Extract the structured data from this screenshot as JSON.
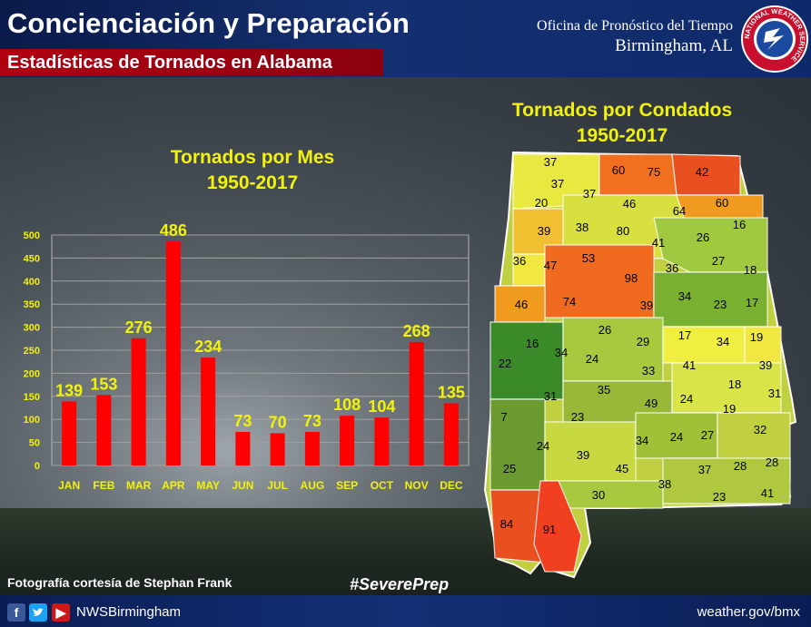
{
  "header": {
    "title": "Concienciación y Preparación",
    "subtitle": "Estadísticas de Tornados en Alabama",
    "office": "Oficina de Pronóstico del Tiempo",
    "city": "Birmingham, AL",
    "logo_text": "NATIONAL WEATHER SERVICE"
  },
  "footer": {
    "credit": "Fotografía cortesía de Stephan Frank",
    "hashtag": "#SeverePrep",
    "handle": "NWSBirmingham",
    "website": "weather.gov/bmx",
    "social_icons": [
      "facebook-icon",
      "twitter-icon",
      "youtube-icon"
    ]
  },
  "chart_data": [
    {
      "type": "bar",
      "title": "Tornados por Mes",
      "subtitle": "1950-2017",
      "categories": [
        "JAN",
        "FEB",
        "MAR",
        "APR",
        "MAY",
        "JUN",
        "JUL",
        "AUG",
        "SEP",
        "OCT",
        "NOV",
        "DEC"
      ],
      "values": [
        139,
        153,
        276,
        486,
        234,
        73,
        70,
        73,
        108,
        104,
        268,
        135
      ],
      "ylim": [
        0,
        500
      ],
      "yticks": [
        0,
        50,
        100,
        150,
        200,
        250,
        300,
        350,
        400,
        450,
        500
      ],
      "grid": true,
      "colors": {
        "bar": "#ff0000",
        "labels": "#f2f20a"
      }
    },
    {
      "type": "heatmap",
      "title": "Tornados por Condados",
      "subtitle": "1950-2017",
      "region": "Alabama",
      "county_values": [
        37,
        60,
        75,
        42,
        37,
        37,
        20,
        46,
        60,
        64,
        16,
        39,
        38,
        80,
        41,
        26,
        36,
        47,
        53,
        98,
        36,
        27,
        18,
        46,
        74,
        39,
        34,
        23,
        17,
        16,
        34,
        26,
        29,
        17,
        34,
        19,
        22,
        24,
        33,
        41,
        39,
        31,
        35,
        18,
        31,
        7,
        23,
        49,
        24,
        19,
        32,
        28,
        24,
        39,
        34,
        24,
        27,
        25,
        45,
        38,
        37,
        28,
        30,
        23,
        41,
        84,
        91
      ],
      "colors": {
        "low": "#1f6b1f",
        "mid_low": "#a8c83a",
        "mid": "#f0ee3a",
        "mid_high": "#f0a020",
        "high": "#e84020"
      }
    }
  ]
}
